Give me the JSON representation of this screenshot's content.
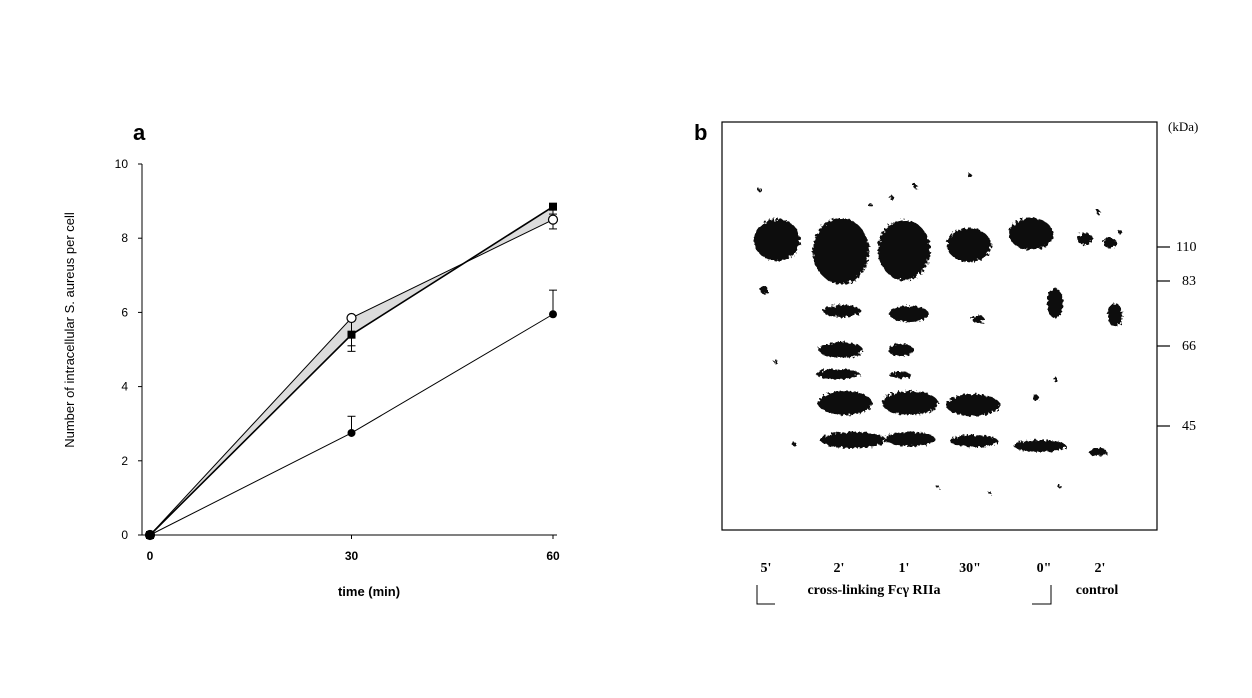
{
  "panel_a": {
    "letter": "a",
    "xlabel": "time (min)",
    "ylabel": "Number of intracellular S. aureus per cell"
  },
  "panel_b": {
    "letter": "b",
    "unit_label": "(kDa)",
    "lane_labels": [
      "5'",
      "2'",
      "1'",
      "30\"",
      "0\"",
      "2'"
    ],
    "group_label": "cross-linking Fcγ RIIa",
    "control_label": "control",
    "markers": [
      "110",
      "83",
      "66",
      "45"
    ]
  },
  "chart_data": [
    {
      "type": "line",
      "panel": "a",
      "x": [
        0,
        30,
        60
      ],
      "xticks": [
        0,
        30,
        60
      ],
      "yticks": [
        0,
        2,
        4,
        6,
        8,
        10
      ],
      "ylim": [
        0,
        10
      ],
      "xlim": [
        0,
        60
      ],
      "xlabel": "time (min)",
      "ylabel": "Number of intracellular S. aureus per cell",
      "grid": false,
      "series": [
        {
          "marker": "open-circle",
          "values": [
            0,
            5.85,
            8.5
          ],
          "errors": [
            0,
            0.75,
            0.25
          ]
        },
        {
          "marker": "filled-square",
          "values": [
            0,
            5.4,
            8.85
          ],
          "errors": [
            0,
            0.45,
            0.2
          ]
        },
        {
          "marker": "filled-circle",
          "values": [
            0,
            2.75,
            5.95
          ],
          "errors": [
            0,
            0.45,
            0.65
          ]
        }
      ]
    },
    {
      "type": "table",
      "panel": "b",
      "description_visible": "western blot",
      "lanes": [
        "5'",
        "2'",
        "1'",
        "30\"",
        "0\"",
        "2'"
      ],
      "markers_kda": [
        110,
        83,
        66,
        45
      ]
    }
  ]
}
